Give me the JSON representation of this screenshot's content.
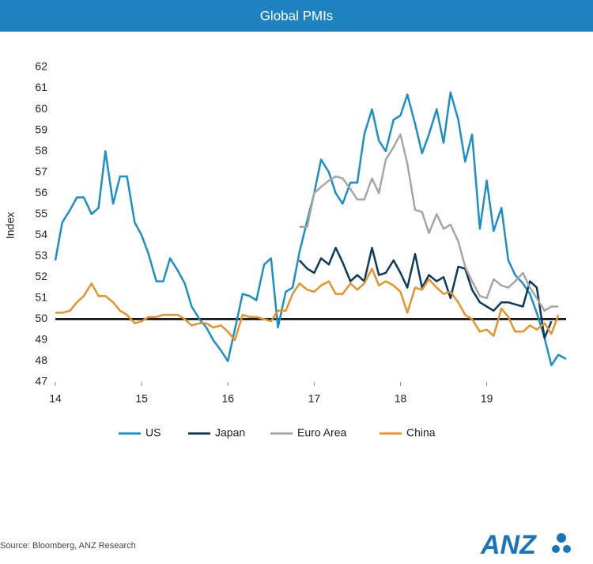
{
  "chart_data": {
    "type": "line",
    "title": "Global PMIs",
    "ylabel": "Index",
    "x": [
      14,
      14.08,
      14.17,
      14.25,
      14.33,
      14.42,
      14.5,
      14.58,
      14.67,
      14.75,
      14.83,
      14.92,
      15,
      15.08,
      15.17,
      15.25,
      15.33,
      15.42,
      15.5,
      15.58,
      15.67,
      15.75,
      15.83,
      15.92,
      16,
      16.08,
      16.17,
      16.25,
      16.33,
      16.42,
      16.5,
      16.58,
      16.67,
      16.75,
      16.83,
      16.92,
      17,
      17.08,
      17.17,
      17.25,
      17.33,
      17.42,
      17.5,
      17.58,
      17.67,
      17.75,
      17.83,
      17.92,
      18,
      18.08,
      18.17,
      18.25,
      18.33,
      18.42,
      18.5,
      18.58,
      18.67,
      18.75,
      18.83,
      18.92,
      19,
      19.08,
      19.17,
      19.25,
      19.33,
      19.42,
      19.5,
      19.58,
      19.67,
      19.75,
      19.83,
      19.92
    ],
    "series": [
      {
        "name": "US",
        "color": "#1b8fc7",
        "values": [
          52.8,
          54.6,
          55.2,
          55.8,
          55.8,
          55.0,
          55.3,
          58.0,
          55.5,
          56.8,
          56.8,
          54.6,
          54.0,
          53.1,
          51.8,
          51.8,
          52.9,
          52.3,
          51.7,
          50.6,
          50.0,
          49.6,
          49.0,
          48.5,
          48.0,
          49.5,
          51.2,
          51.1,
          50.9,
          52.6,
          52.9,
          49.6,
          51.3,
          51.5,
          53.2,
          54.7,
          56.0,
          57.6,
          57.0,
          56.0,
          55.5,
          56.5,
          56.5,
          58.8,
          60.0,
          58.5,
          58.0,
          59.5,
          59.7,
          60.7,
          59.3,
          57.9,
          58.8,
          60.0,
          58.4,
          60.8,
          59.5,
          57.5,
          58.8,
          54.3,
          56.6,
          54.2,
          55.3,
          52.8,
          52.1,
          51.7,
          51.2,
          50.3,
          49.1,
          47.8,
          48.3,
          48.1
        ]
      },
      {
        "name": "Japan",
        "color": "#0b3a5c",
        "values": [
          null,
          null,
          null,
          null,
          null,
          null,
          null,
          null,
          null,
          null,
          null,
          null,
          null,
          null,
          null,
          null,
          null,
          null,
          null,
          null,
          null,
          null,
          null,
          null,
          null,
          null,
          null,
          null,
          null,
          null,
          null,
          null,
          null,
          null,
          52.8,
          52.4,
          52.2,
          52.9,
          52.6,
          53.4,
          52.7,
          51.8,
          52.1,
          51.8,
          53.4,
          52.1,
          52.2,
          52.8,
          52.2,
          51.5,
          53.1,
          51.5,
          52.1,
          51.8,
          52.0,
          51.0,
          52.5,
          52.4,
          51.4,
          50.8,
          50.6,
          50.4,
          50.8,
          50.8,
          50.7,
          50.6,
          51.8,
          51.5,
          49.1,
          49.9,
          null,
          null
        ]
      },
      {
        "name": "Euro Area",
        "color": "#a6a6a6",
        "values": [
          null,
          null,
          null,
          null,
          null,
          null,
          null,
          null,
          null,
          null,
          null,
          null,
          null,
          null,
          null,
          null,
          null,
          null,
          null,
          null,
          null,
          null,
          null,
          null,
          null,
          null,
          null,
          null,
          null,
          null,
          null,
          null,
          null,
          null,
          54.4,
          54.4,
          56.0,
          56.3,
          56.6,
          56.8,
          56.7,
          56.2,
          55.7,
          55.7,
          56.7,
          56.0,
          57.6,
          58.2,
          58.8,
          57.4,
          55.2,
          55.1,
          54.1,
          55.0,
          54.3,
          54.5,
          53.7,
          52.5,
          51.8,
          51.1,
          51.0,
          51.9,
          51.6,
          51.5,
          51.8,
          52.2,
          51.5,
          51.0,
          50.4,
          50.6,
          50.6,
          null
        ]
      },
      {
        "name": "China",
        "color": "#e8922a",
        "values": [
          50.3,
          50.3,
          50.4,
          50.8,
          51.1,
          51.7,
          51.1,
          51.1,
          50.8,
          50.4,
          50.2,
          49.8,
          49.9,
          50.1,
          50.1,
          50.2,
          50.2,
          50.2,
          50.0,
          49.7,
          49.8,
          49.8,
          49.6,
          49.7,
          49.4,
          49.0,
          50.2,
          50.1,
          50.1,
          50.0,
          49.9,
          50.4,
          50.4,
          51.2,
          51.7,
          51.4,
          51.3,
          51.6,
          51.8,
          51.2,
          51.2,
          51.7,
          51.4,
          51.7,
          52.4,
          51.6,
          51.8,
          51.6,
          51.3,
          50.3,
          51.5,
          51.4,
          51.9,
          51.5,
          51.2,
          51.3,
          50.8,
          50.2,
          50.0,
          49.4,
          49.5,
          49.2,
          50.5,
          50.1,
          49.4,
          49.4,
          49.7,
          49.5,
          49.8,
          49.3,
          50.2,
          null
        ]
      }
    ],
    "xlim": [
      14,
      19.92
    ],
    "xticks": [
      14,
      15,
      16,
      17,
      18,
      19
    ],
    "ylim": [
      47,
      62
    ],
    "yticks": [
      47,
      48,
      49,
      50,
      51,
      52,
      53,
      54,
      55,
      56,
      57,
      58,
      59,
      60,
      61,
      62
    ],
    "hline": 50,
    "legend": "bottom"
  },
  "footer": {
    "source": "Source: Bloomberg, ANZ Research",
    "logo": "ANZ"
  }
}
